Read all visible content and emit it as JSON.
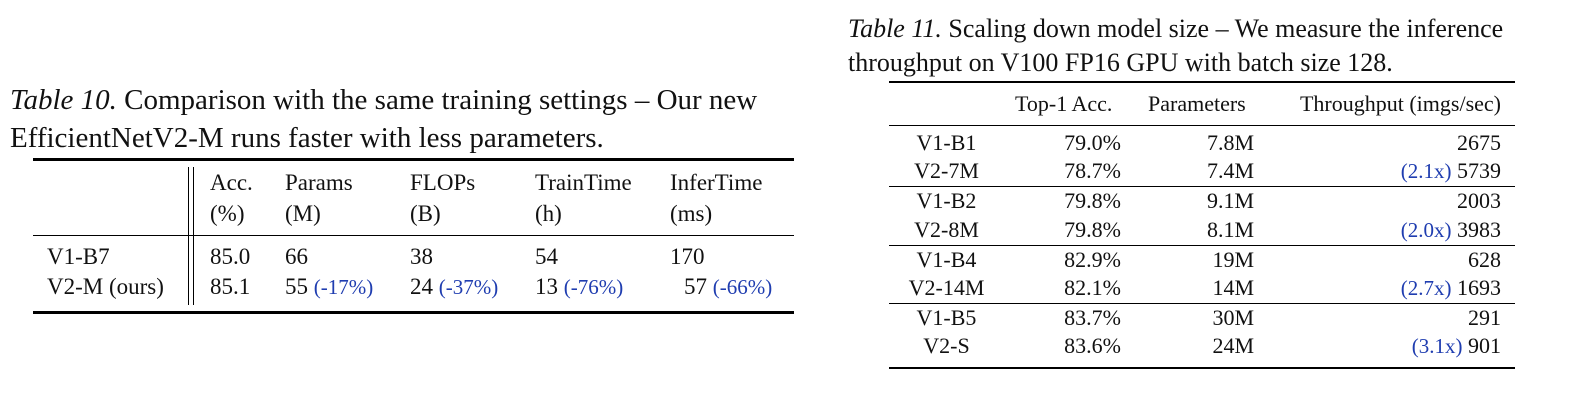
{
  "table10": {
    "caption_label": "Table 10.",
    "caption_text": "Comparison with the same training settings – Our new EfficientNetV2-M runs faster with less parameters.",
    "headers": [
      {
        "line1": "Acc.",
        "line2": "(%)"
      },
      {
        "line1": "Params",
        "line2": "(M)"
      },
      {
        "line1": "FLOPs",
        "line2": "(B)"
      },
      {
        "line1": "TrainTime",
        "line2": "(h)"
      },
      {
        "line1": "InferTime",
        "line2": "(ms)"
      }
    ],
    "rows": [
      {
        "name": "V1-B7",
        "acc": "85.0",
        "params": "66",
        "params_delta": "",
        "flops": "38",
        "flops_delta": "",
        "train": "54",
        "train_delta": "",
        "infer": "170",
        "infer_delta": ""
      },
      {
        "name": "V2-M (ours)",
        "acc": "85.1",
        "params": "55",
        "params_delta": "(-17%)",
        "flops": "24",
        "flops_delta": "(-37%)",
        "train": "13",
        "train_delta": "(-76%)",
        "infer": "57",
        "infer_delta": "(-66%)"
      }
    ]
  },
  "table11": {
    "caption_label": "Table 11.",
    "caption_text": "Scaling down model size – We measure the inference throughput on V100 FP16 GPU with batch size 128.",
    "headers": {
      "acc": "Top-1 Acc.",
      "params": "Parameters",
      "throughput": "Throughput (imgs/sec)"
    },
    "rows": [
      {
        "name": "V1-B1",
        "acc": "79.0%",
        "params": "7.8M",
        "speedup": "",
        "throughput": "2675"
      },
      {
        "name": "V2-7M",
        "acc": "78.7%",
        "params": "7.4M",
        "speedup": "(2.1x)",
        "throughput": "5739"
      },
      {
        "name": "V1-B2",
        "acc": "79.8%",
        "params": "9.1M",
        "speedup": "",
        "throughput": "2003"
      },
      {
        "name": "V2-8M",
        "acc": "79.8%",
        "params": "8.1M",
        "speedup": "(2.0x)",
        "throughput": "3983"
      },
      {
        "name": "V1-B4",
        "acc": "82.9%",
        "params": "19M",
        "speedup": "",
        "throughput": "628"
      },
      {
        "name": "V2-14M",
        "acc": "82.1%",
        "params": "14M",
        "speedup": "(2.7x)",
        "throughput": "1693"
      },
      {
        "name": "V1-B5",
        "acc": "83.7%",
        "params": "30M",
        "speedup": "",
        "throughput": "291"
      },
      {
        "name": "V2-S",
        "acc": "83.6%",
        "params": "24M",
        "speedup": "(3.1x)",
        "throughput": "901"
      }
    ]
  }
}
